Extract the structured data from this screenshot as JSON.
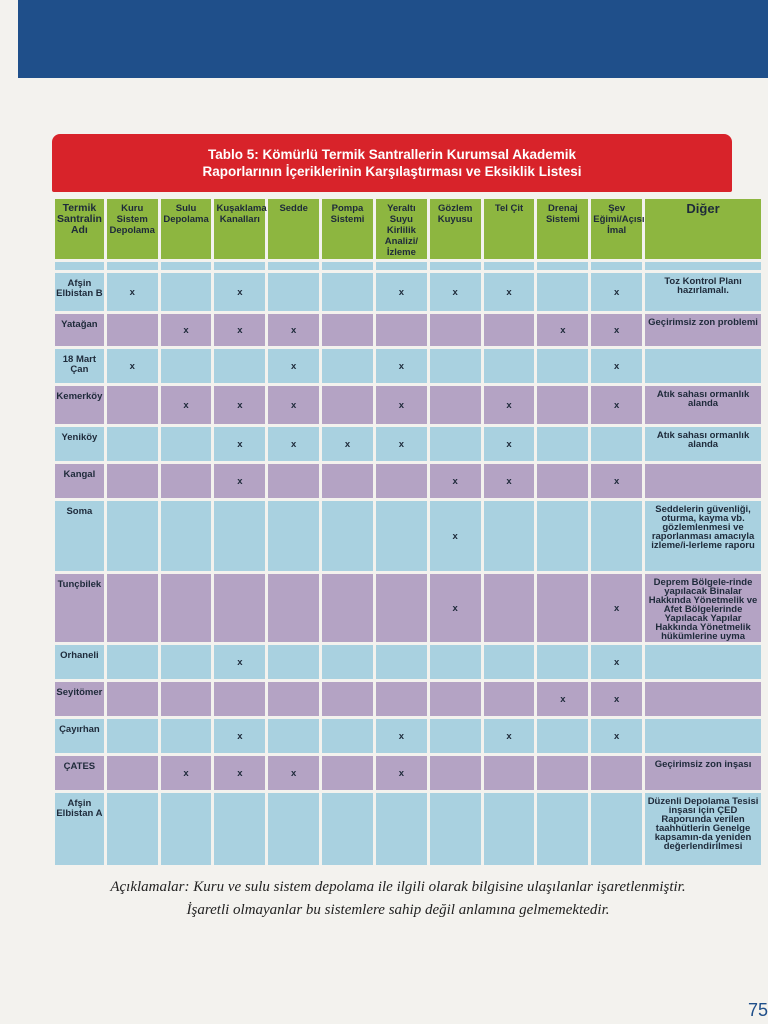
{
  "title": {
    "line1": "Tablo 5: Kömürlü Termik Santrallerin Kurumsal Akademik",
    "line2": "Raporlarının İçeriklerinin Karşılaştırması ve Eksiklik Listesi"
  },
  "columns": [
    "Termik Santralin Adı",
    "Kuru Sistem Depolama",
    "Sulu Depolama",
    "Kuşaklama Kanalları",
    "Sedde",
    "Pompa Sistemi",
    "Yeraltı Suyu Kirlilik Analizi/İzleme",
    "Gözlem Kuyusu",
    "Tel Çit",
    "Drenaj Sistemi",
    "Şev Eğimi/Açısı İmal",
    "Diğer"
  ],
  "rows": [
    {
      "name": "Afşin Elbistan B",
      "cells": [
        "x",
        "",
        "x",
        "",
        "",
        "x",
        "x",
        "x",
        "",
        "x"
      ],
      "other": "Toz Kontrol Planı hazırlamalı."
    },
    {
      "name": "Yatağan",
      "cells": [
        "",
        "x",
        "x",
        "x",
        "",
        "",
        "",
        "",
        "x",
        "x"
      ],
      "other": "Geçirimsiz zon problemi"
    },
    {
      "name": "18 Mart Çan",
      "cells": [
        "x",
        "",
        "",
        "x",
        "",
        "x",
        "",
        "",
        "",
        "x"
      ],
      "other": ""
    },
    {
      "name": "Kemerköy",
      "cells": [
        "",
        "x",
        "x",
        "x",
        "",
        "x",
        "",
        "x",
        "",
        "x"
      ],
      "other": "Atık sahası ormanlık alanda"
    },
    {
      "name": "Yeniköy",
      "cells": [
        "",
        "",
        "x",
        "x",
        "x",
        "x",
        "",
        "x",
        "",
        ""
      ],
      "other": "Atık sahası ormanlık alanda"
    },
    {
      "name": "Kangal",
      "cells": [
        "",
        "",
        "x",
        "",
        "",
        "",
        "x",
        "x",
        "",
        "x"
      ],
      "other": ""
    },
    {
      "name": "Soma",
      "cells": [
        "",
        "",
        "",
        "",
        "",
        "",
        "x",
        "",
        "",
        ""
      ],
      "other": "Seddelerin güvenliği, oturma, kayma vb. gözlemlenmesi ve raporlanması amacıyla izleme/i-lerleme raporu"
    },
    {
      "name": "Tunçbilek",
      "cells": [
        "",
        "",
        "",
        "",
        "",
        "",
        "x",
        "",
        "",
        "x"
      ],
      "other": "Deprem Bölgele-rinde yapılacak Binalar Hakkında Yönetmelik ve Afet Bölgelerinde Yapılacak Yapılar Hakkında Yönetmelik hükümlerine uyma"
    },
    {
      "name": "Orhaneli",
      "cells": [
        "",
        "",
        "x",
        "",
        "",
        "",
        "",
        "",
        "",
        "x"
      ],
      "other": ""
    },
    {
      "name": "Seyitömer",
      "cells": [
        "",
        "",
        "",
        "",
        "",
        "",
        "",
        "",
        "x",
        "x"
      ],
      "other": ""
    },
    {
      "name": "Çayırhan",
      "cells": [
        "",
        "",
        "x",
        "",
        "",
        "x",
        "",
        "x",
        "",
        "x"
      ],
      "other": ""
    },
    {
      "name": "ÇATES",
      "cells": [
        "",
        "x",
        "x",
        "x",
        "",
        "x",
        "",
        "",
        "",
        ""
      ],
      "other": "Geçirimsiz zon inşası"
    },
    {
      "name": "Afşin Elbistan A",
      "cells": [
        "",
        "",
        "",
        "",
        "",
        "",
        "",
        "",
        "",
        ""
      ],
      "other": "Düzenli Depolama Tesisi inşası için ÇED Raporunda verilen taahhütlerin Genelge kapsamın-da yeniden değerlendirilmesi"
    }
  ],
  "note": {
    "line1": "Açıklamalar: Kuru ve sulu sistem depolama ile ilgili olarak bilgisine ulaşılanlar işaretlenmiştir.",
    "line2": "İşaretli olmayanlar bu sistemlere sahip değil anlamına gelmemektedir."
  },
  "page_number": "75",
  "colors": {
    "header_green": "#8db640",
    "row_blue": "#a9d1e0",
    "row_purple": "#b4a3c4",
    "title_red": "#d8232a",
    "top_band_blue": "#1f4f8a"
  }
}
